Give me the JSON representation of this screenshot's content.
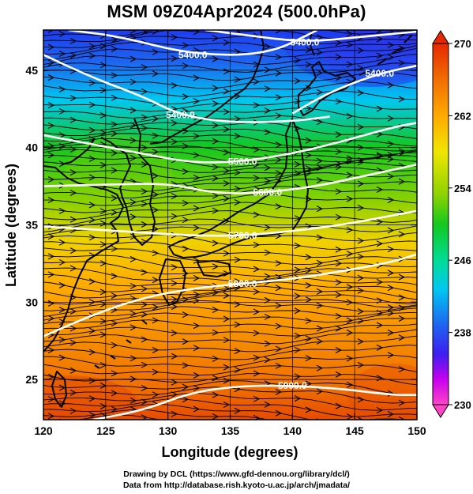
{
  "title": "MSM 09Z04Apr2024 (500.0hPa)",
  "footer": {
    "line1": "Drawing by DCL (https://www.gfd-dennou.org/library/dcl/)",
    "line2": "Data from http://database.rish.kyoto-u.ac.jp/arch/jmadata/"
  },
  "axes": {
    "xlabel": "Longitude (degrees)",
    "ylabel": "Latitude  (degrees)",
    "xlim": [
      120,
      150
    ],
    "ylim": [
      22.4,
      47.6
    ],
    "xticks": [
      120,
      125,
      130,
      135,
      140,
      145,
      150
    ],
    "yticks": [
      25,
      30,
      35,
      40,
      45
    ],
    "grid": true
  },
  "colorbar": {
    "range": [
      230,
      270
    ],
    "tick_labels": [
      "270",
      "262",
      "254",
      "246",
      "238",
      "230"
    ],
    "tick_values": [
      270,
      262,
      254,
      246,
      238,
      230
    ],
    "colors": [
      "#ff44c8",
      "#c800f0",
      "#3c1ef0",
      "#1e64f0",
      "#00c8f0",
      "#00dc96",
      "#14c81e",
      "#8cd200",
      "#f0e600",
      "#ffaa00",
      "#f06e00",
      "#e62800"
    ]
  },
  "chart_data": {
    "type": "heatmap",
    "title": "MSM 09Z04Apr2024 (500.0hPa)",
    "xlabel": "Longitude (degrees)",
    "ylabel": "Latitude  (degrees)",
    "variable_range": [
      230,
      270
    ],
    "contours": [
      {
        "label": "5400.0",
        "points": [
          [
            122,
            47.6
          ],
          [
            126,
            47.2
          ],
          [
            132,
            46.0
          ],
          [
            138,
            46.0
          ],
          [
            142,
            47.6
          ]
        ]
      },
      {
        "label": "5400.0",
        "points": [
          [
            140,
            42.2
          ],
          [
            143,
            43.6
          ],
          [
            147,
            44.8
          ],
          [
            150,
            45.3
          ]
        ]
      },
      {
        "label": "5400.0",
        "points": [
          [
            133,
            47.6
          ],
          [
            136,
            47.3
          ],
          [
            141,
            46.8
          ],
          [
            146,
            47.2
          ],
          [
            150,
            47.5
          ]
        ]
      },
      {
        "label": "5400.0",
        "points": [
          [
            120,
            46.0
          ],
          [
            124,
            44.5
          ],
          [
            128,
            43.3
          ],
          [
            131,
            42.1
          ],
          [
            135,
            41.6
          ],
          [
            140,
            41.7
          ],
          [
            143,
            42.0
          ]
        ]
      },
      {
        "label": "5500.0",
        "points": [
          [
            120,
            40.8
          ],
          [
            124,
            40.2
          ],
          [
            128,
            39.6
          ],
          [
            132,
            39.0
          ],
          [
            136,
            39.1
          ],
          [
            140,
            39.6
          ],
          [
            144,
            40.4
          ],
          [
            148,
            41.3
          ],
          [
            150,
            41.6
          ]
        ]
      },
      {
        "label": "5600.0",
        "points": [
          [
            120,
            37.5
          ],
          [
            125,
            37.6
          ],
          [
            130,
            37.7
          ],
          [
            134,
            37.0
          ],
          [
            138,
            37.1
          ],
          [
            142,
            37.5
          ],
          [
            146,
            38.2
          ],
          [
            150,
            38.9
          ]
        ]
      },
      {
        "label": "5700.0",
        "points": [
          [
            120,
            34.9
          ],
          [
            124,
            34.7
          ],
          [
            128,
            34.5
          ],
          [
            132,
            34.3
          ],
          [
            136,
            34.3
          ],
          [
            140,
            34.6
          ],
          [
            144,
            35.0
          ],
          [
            148,
            35.6
          ],
          [
            150,
            35.9
          ]
        ]
      },
      {
        "label": "5800.0",
        "points": [
          [
            120,
            27.8
          ],
          [
            124,
            29.2
          ],
          [
            128,
            30.3
          ],
          [
            132,
            30.9
          ],
          [
            136,
            31.2
          ],
          [
            140,
            31.5
          ],
          [
            144,
            32.0
          ],
          [
            148,
            32.6
          ],
          [
            150,
            33.1
          ]
        ]
      },
      {
        "label": "5900.0",
        "points": [
          [
            124,
            22.4
          ],
          [
            128,
            23.0
          ],
          [
            132,
            24.2
          ],
          [
            136,
            24.6
          ],
          [
            140,
            24.6
          ],
          [
            144,
            24.4
          ],
          [
            148,
            24.0
          ],
          [
            150,
            24.0
          ]
        ]
      }
    ]
  }
}
